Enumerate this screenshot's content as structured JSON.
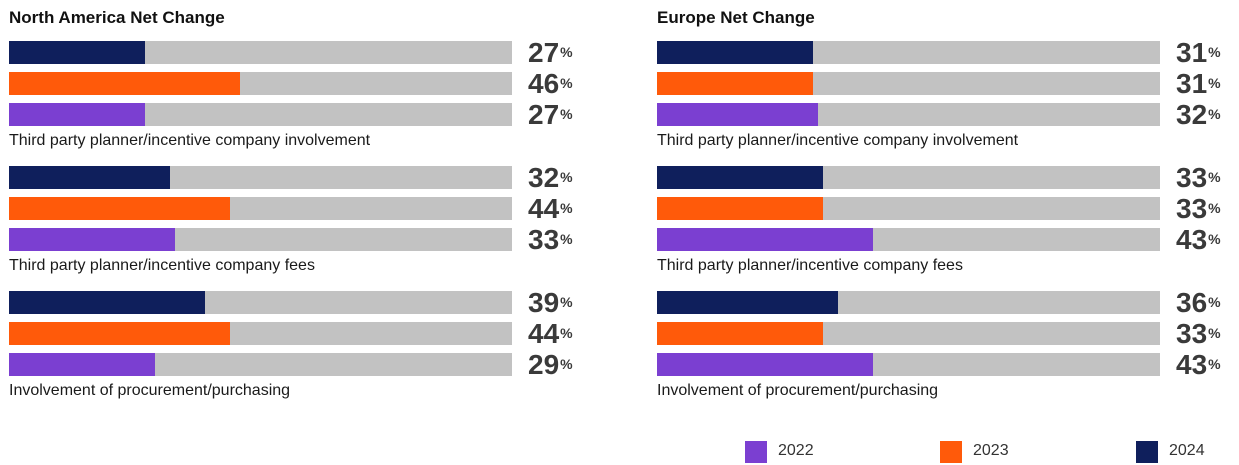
{
  "colors": {
    "2022": "#7b3fd1",
    "2023": "#ff5a0a",
    "2024": "#0f1f5c",
    "track": "#c2c2c2"
  },
  "legend": [
    {
      "label": "2022",
      "color": "#7b3fd1"
    },
    {
      "label": "2023",
      "color": "#ff5a0a"
    },
    {
      "label": "2024",
      "color": "#0f1f5c"
    }
  ],
  "chart_data": [
    {
      "type": "bar",
      "title": "North America Net Change",
      "xlim": [
        0,
        100
      ],
      "series_order": [
        "2024",
        "2023",
        "2022"
      ],
      "categories": [
        {
          "label": "Third party planner/incentive company involvement",
          "values": {
            "2024": 27,
            "2023": 46,
            "2022": 27
          }
        },
        {
          "label": "Third party planner/incentive company fees",
          "values": {
            "2024": 32,
            "2023": 44,
            "2022": 33
          }
        },
        {
          "label": "Involvement of procurement/purchasing",
          "values": {
            "2024": 39,
            "2023": 44,
            "2022": 29
          }
        }
      ],
      "unit": "%"
    },
    {
      "type": "bar",
      "title": "Europe Net Change",
      "xlim": [
        0,
        100
      ],
      "series_order": [
        "2024",
        "2023",
        "2022"
      ],
      "categories": [
        {
          "label": "Third party planner/incentive company involvement",
          "values": {
            "2024": 31,
            "2023": 31,
            "2022": 32
          }
        },
        {
          "label": "Third party planner/incentive company fees",
          "values": {
            "2024": 33,
            "2023": 33,
            "2022": 43
          }
        },
        {
          "label": "Involvement of procurement/purchasing",
          "values": {
            "2024": 36,
            "2023": 33,
            "2022": 43
          }
        }
      ],
      "unit": "%"
    }
  ]
}
